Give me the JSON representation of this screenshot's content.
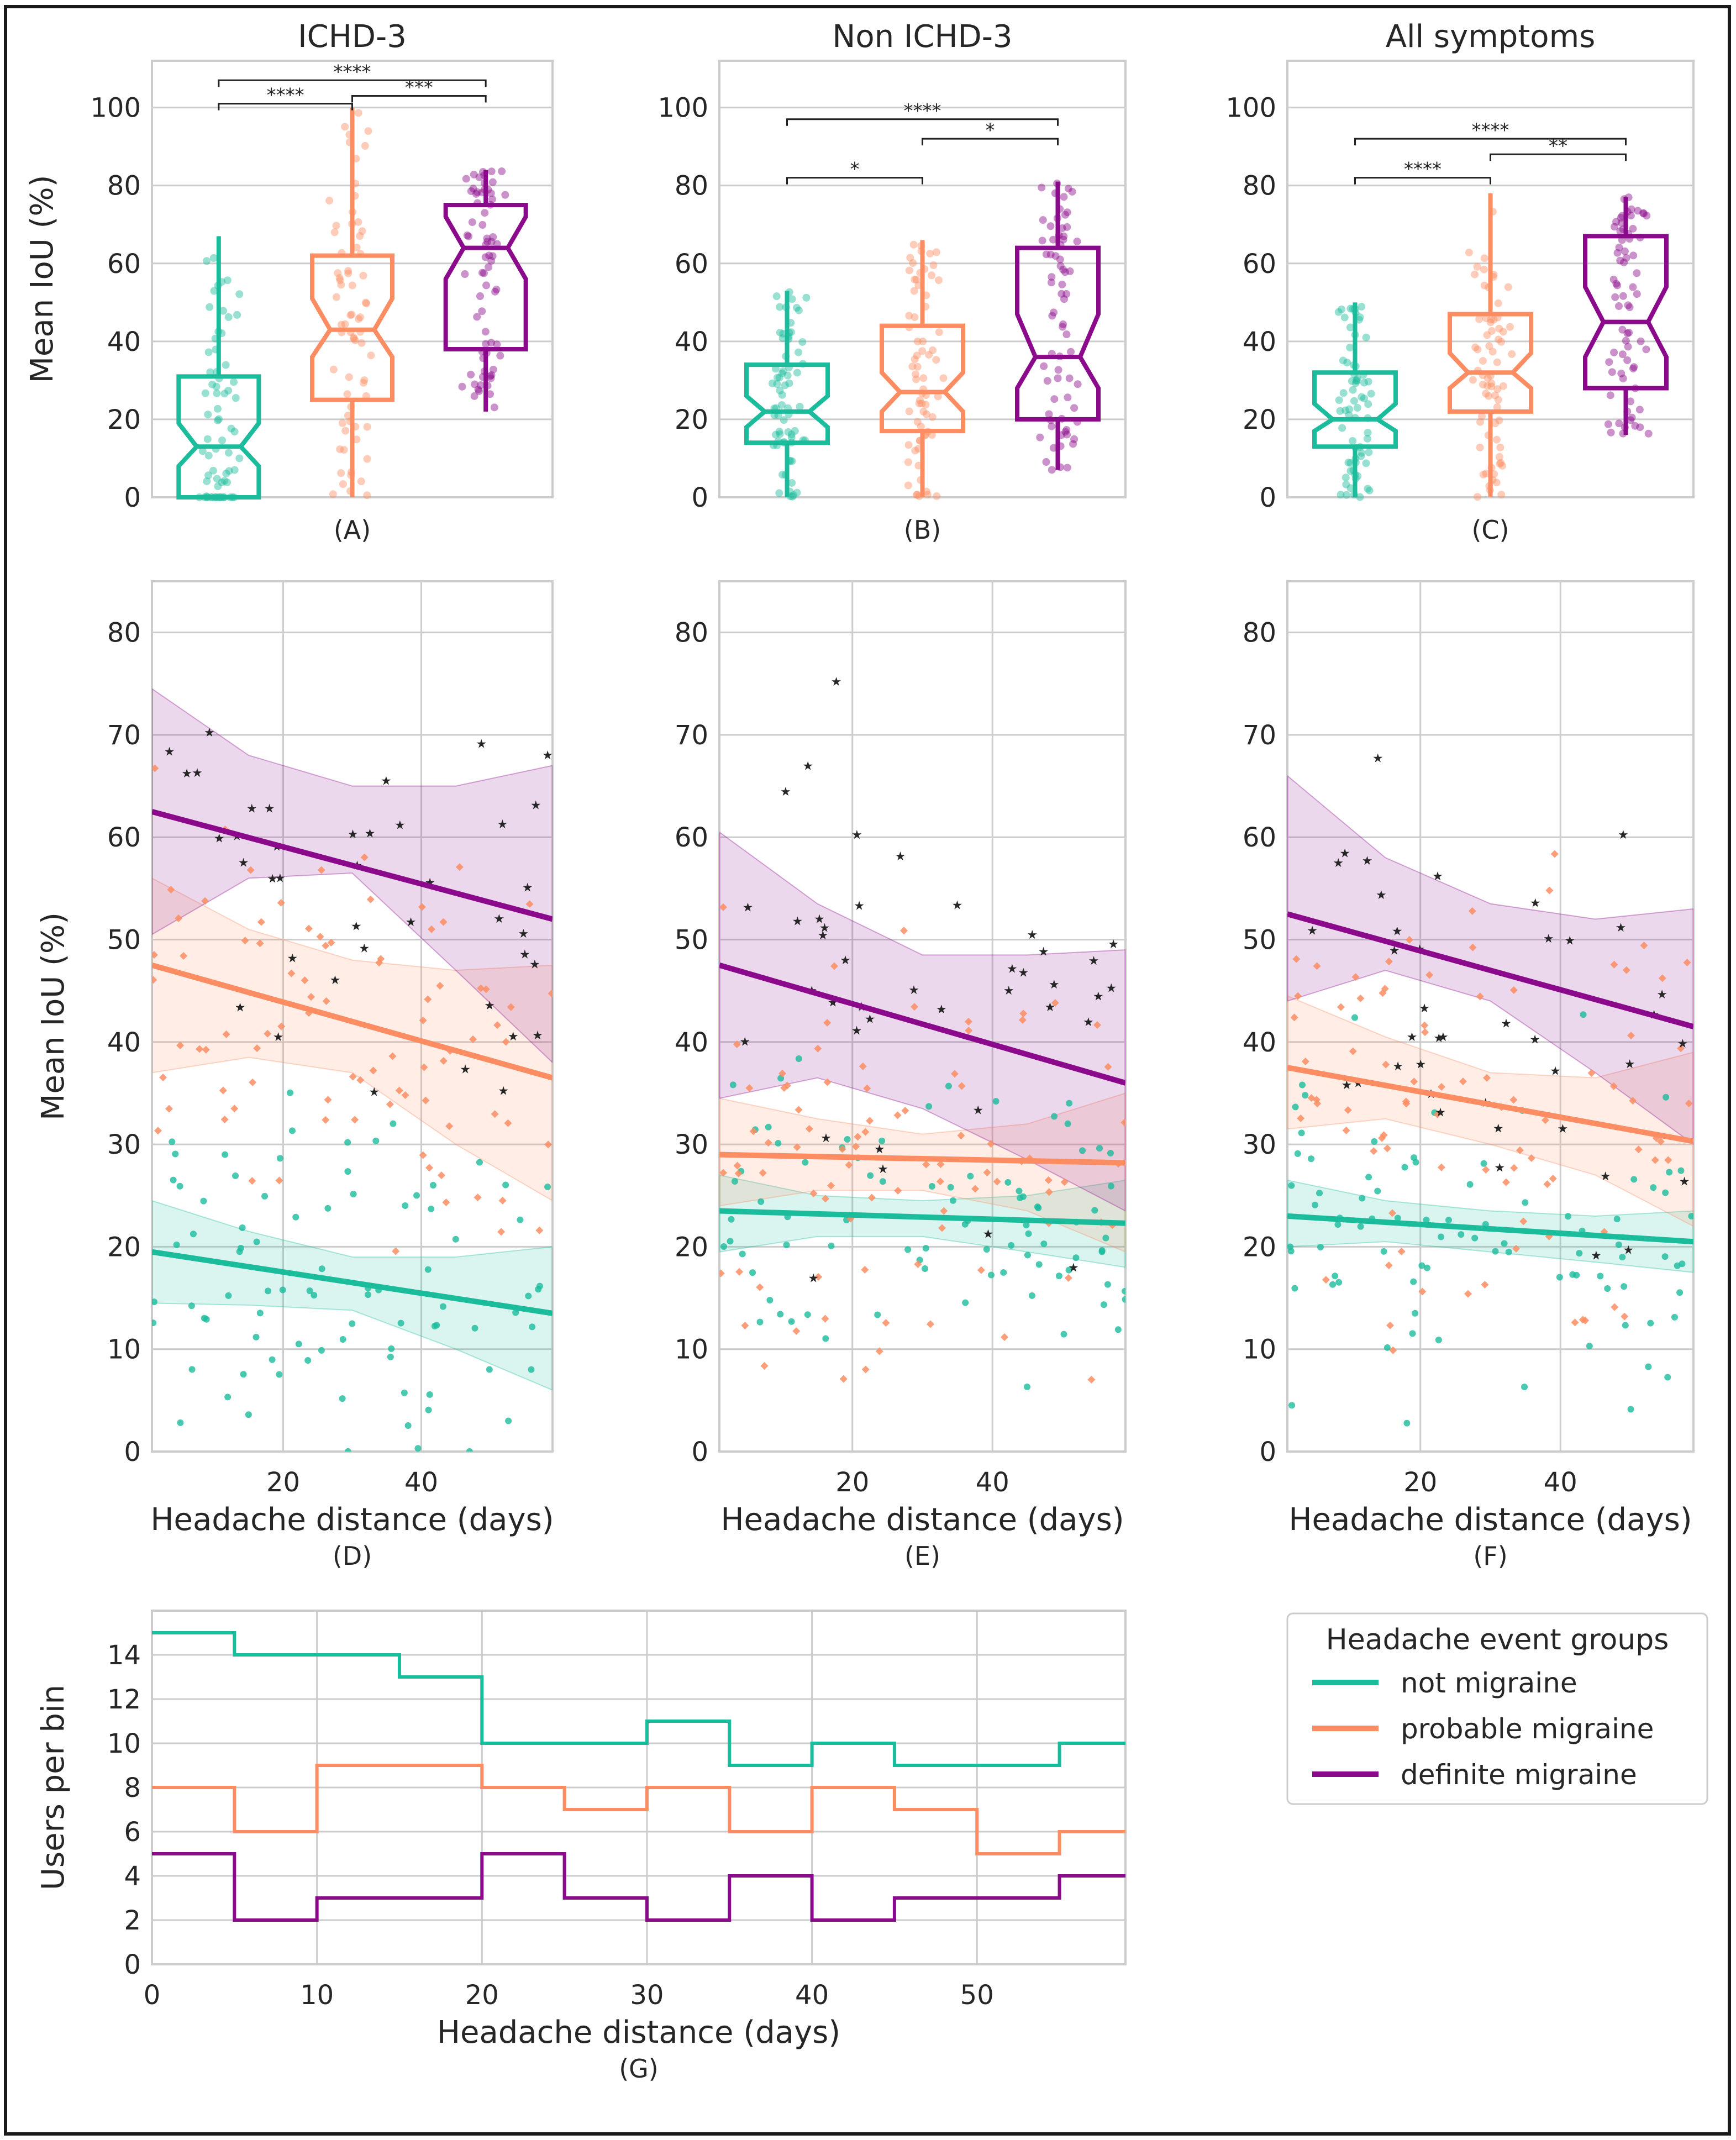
{
  "colors": {
    "not": "#1abc9c",
    "prob": "#fc8d62",
    "def": "#8b0a8b",
    "grid": "#cccccc",
    "frame": "#1a1a1a"
  },
  "legend": {
    "title": "Headache event groups",
    "items": [
      {
        "key": "not",
        "label": "not migraine"
      },
      {
        "key": "prob",
        "label": "probable migraine"
      },
      {
        "key": "def",
        "label": "definite migraine"
      }
    ]
  },
  "chart_data": [
    {
      "id": "A",
      "type": "box",
      "title": "ICHD-3",
      "caption": "(A)",
      "ylabel": "Mean IoU (%)",
      "ylim": [
        0,
        112
      ],
      "yticks": [
        0,
        20,
        40,
        60,
        80,
        100
      ],
      "boxes": [
        {
          "group": "not",
          "min": 0,
          "q1": 0,
          "median": 13,
          "q3": 31,
          "max": 67,
          "notch": [
            8,
            19
          ]
        },
        {
          "group": "prob",
          "min": 0,
          "q1": 25,
          "median": 43,
          "q3": 62,
          "max": 100,
          "notch": [
            36,
            51
          ]
        },
        {
          "group": "def",
          "min": 22,
          "q1": 38,
          "median": 64,
          "q3": 75,
          "max": 84,
          "notch": [
            56,
            72
          ]
        }
      ],
      "brackets": [
        {
          "from": 0,
          "to": 1,
          "y": 101,
          "label": "****"
        },
        {
          "from": 1,
          "to": 2,
          "y": 103,
          "label": "***"
        },
        {
          "from": 0,
          "to": 2,
          "y": 107,
          "label": "****"
        }
      ]
    },
    {
      "id": "B",
      "type": "box",
      "title": "Non ICHD-3",
      "caption": "(B)",
      "ylabel": "",
      "ylim": [
        0,
        112
      ],
      "yticks": [
        0,
        20,
        40,
        60,
        80,
        100
      ],
      "boxes": [
        {
          "group": "not",
          "min": 0,
          "q1": 14,
          "median": 22,
          "q3": 34,
          "max": 53,
          "notch": [
            18,
            26
          ]
        },
        {
          "group": "prob",
          "min": 0,
          "q1": 17,
          "median": 27,
          "q3": 44,
          "max": 66,
          "notch": [
            22,
            32
          ]
        },
        {
          "group": "def",
          "min": 7,
          "q1": 20,
          "median": 36,
          "q3": 64,
          "max": 81,
          "notch": [
            28,
            47
          ]
        }
      ],
      "brackets": [
        {
          "from": 0,
          "to": 1,
          "y": 82,
          "label": "*"
        },
        {
          "from": 1,
          "to": 2,
          "y": 92,
          "label": "*"
        },
        {
          "from": 0,
          "to": 2,
          "y": 97,
          "label": "****"
        }
      ]
    },
    {
      "id": "C",
      "type": "box",
      "title": "All symptoms",
      "caption": "(C)",
      "ylabel": "",
      "ylim": [
        0,
        112
      ],
      "yticks": [
        0,
        20,
        40,
        60,
        80,
        100
      ],
      "boxes": [
        {
          "group": "not",
          "min": 0,
          "q1": 13,
          "median": 20,
          "q3": 32,
          "max": 50,
          "notch": [
            17,
            24
          ]
        },
        {
          "group": "prob",
          "min": 0,
          "q1": 22,
          "median": 32,
          "q3": 47,
          "max": 78,
          "notch": [
            28,
            37
          ]
        },
        {
          "group": "def",
          "min": 16,
          "q1": 28,
          "median": 45,
          "q3": 67,
          "max": 77,
          "notch": [
            36,
            54
          ]
        }
      ],
      "brackets": [
        {
          "from": 0,
          "to": 1,
          "y": 82,
          "label": "****"
        },
        {
          "from": 1,
          "to": 2,
          "y": 88,
          "label": "**"
        },
        {
          "from": 0,
          "to": 2,
          "y": 92,
          "label": "****"
        }
      ]
    },
    {
      "id": "D",
      "type": "scatter-regression",
      "caption": "(D)",
      "ylabel": "Mean IoU (%)",
      "xlabel": "Headache distance (days)",
      "xlim": [
        1,
        59
      ],
      "ylim": [
        0,
        85
      ],
      "xticks": [
        20,
        40
      ],
      "yticks": [
        0,
        10,
        20,
        30,
        40,
        50,
        60,
        70,
        80
      ],
      "lines": [
        {
          "group": "not",
          "y0": 19.5,
          "y1": 13.5,
          "band": [
            [
              1,
              14.5,
              24.5
            ],
            [
              15,
              14.3,
              21.5
            ],
            [
              30,
              13.8,
              19.0
            ],
            [
              45,
              10.0,
              19.0
            ],
            [
              59,
              6.0,
              20.0
            ]
          ]
        },
        {
          "group": "prob",
          "y0": 47.5,
          "y1": 36.5,
          "band": [
            [
              1,
              37.0,
              56.0
            ],
            [
              15,
              38.5,
              51.0
            ],
            [
              30,
              37.0,
              48.0
            ],
            [
              45,
              30.0,
              47.0
            ],
            [
              59,
              24.5,
              47.5
            ]
          ]
        },
        {
          "group": "def",
          "y0": 62.5,
          "y1": 52.0,
          "band": [
            [
              1,
              50.5,
              74.5
            ],
            [
              15,
              56.0,
              68.0
            ],
            [
              30,
              56.5,
              65.0
            ],
            [
              45,
              47.0,
              65.0
            ],
            [
              59,
              38.0,
              67.0
            ]
          ]
        }
      ]
    },
    {
      "id": "E",
      "type": "scatter-regression",
      "caption": "(E)",
      "ylabel": "",
      "xlabel": "Headache distance (days)",
      "xlim": [
        1,
        59
      ],
      "ylim": [
        0,
        85
      ],
      "xticks": [
        20,
        40
      ],
      "yticks": [
        0,
        10,
        20,
        30,
        40,
        50,
        60,
        70,
        80
      ],
      "lines": [
        {
          "group": "not",
          "y0": 23.5,
          "y1": 22.3,
          "band": [
            [
              1,
              19.5,
              27.0
            ],
            [
              15,
              21.0,
              25.0
            ],
            [
              30,
              21.0,
              24.5
            ],
            [
              45,
              19.5,
              25.0
            ],
            [
              59,
              18.0,
              26.5
            ]
          ]
        },
        {
          "group": "prob",
          "y0": 29.0,
          "y1": 28.2,
          "band": [
            [
              1,
              24.0,
              34.5
            ],
            [
              15,
              25.5,
              32.5
            ],
            [
              30,
              25.5,
              31.0
            ],
            [
              45,
              23.5,
              32.0
            ],
            [
              59,
              19.5,
              35.0
            ]
          ]
        },
        {
          "group": "def",
          "y0": 47.5,
          "y1": 36.0,
          "band": [
            [
              1,
              34.5,
              60.5
            ],
            [
              15,
              36.5,
              53.5
            ],
            [
              30,
              33.5,
              48.5
            ],
            [
              45,
              28.5,
              48.5
            ],
            [
              59,
              23.5,
              49.0
            ]
          ]
        }
      ]
    },
    {
      "id": "F",
      "type": "scatter-regression",
      "caption": "(F)",
      "ylabel": "",
      "xlabel": "Headache distance (days)",
      "xlim": [
        1,
        59
      ],
      "ylim": [
        0,
        85
      ],
      "xticks": [
        20,
        40
      ],
      "yticks": [
        0,
        10,
        20,
        30,
        40,
        50,
        60,
        70,
        80
      ],
      "lines": [
        {
          "group": "not",
          "y0": 23.0,
          "y1": 20.5,
          "band": [
            [
              1,
              20.0,
              26.5
            ],
            [
              15,
              20.5,
              24.5
            ],
            [
              30,
              19.5,
              23.5
            ],
            [
              45,
              18.5,
              23.0
            ],
            [
              59,
              17.5,
              23.5
            ]
          ]
        },
        {
          "group": "prob",
          "y0": 37.5,
          "y1": 30.3,
          "band": [
            [
              1,
              31.5,
              44.5
            ],
            [
              15,
              32.5,
              40.5
            ],
            [
              30,
              30.0,
              37.0
            ],
            [
              45,
              27.0,
              36.5
            ],
            [
              59,
              22.0,
              39.0
            ]
          ]
        },
        {
          "group": "def",
          "y0": 52.5,
          "y1": 41.5,
          "band": [
            [
              1,
              44.0,
              66.0
            ],
            [
              15,
              47.0,
              58.0
            ],
            [
              30,
              44.0,
              53.5
            ],
            [
              45,
              37.0,
              52.0
            ],
            [
              59,
              30.0,
              53.0
            ]
          ]
        }
      ]
    },
    {
      "id": "G",
      "type": "step-line",
      "caption": "(G)",
      "ylabel": "Users per bin",
      "xlabel": "Headache distance (days)",
      "xlim": [
        0,
        59
      ],
      "ylim": [
        0,
        16
      ],
      "xticks": [
        0,
        10,
        20,
        30,
        40,
        50
      ],
      "yticks": [
        0,
        2,
        4,
        6,
        8,
        10,
        12,
        14
      ],
      "bins": [
        0,
        5,
        10,
        15,
        20,
        25,
        30,
        35,
        40,
        45,
        50,
        55
      ],
      "series": [
        {
          "group": "not",
          "name": "not migraine",
          "values": [
            15,
            14,
            14,
            13,
            10,
            10,
            11,
            9,
            10,
            9,
            9,
            10
          ]
        },
        {
          "group": "prob",
          "name": "probable migraine",
          "values": [
            8,
            6,
            9,
            9,
            8,
            7,
            8,
            6,
            8,
            7,
            5,
            6
          ]
        },
        {
          "group": "def",
          "name": "definite migraine",
          "values": [
            5,
            2,
            3,
            3,
            5,
            3,
            2,
            4,
            2,
            3,
            3,
            4
          ]
        }
      ]
    }
  ]
}
